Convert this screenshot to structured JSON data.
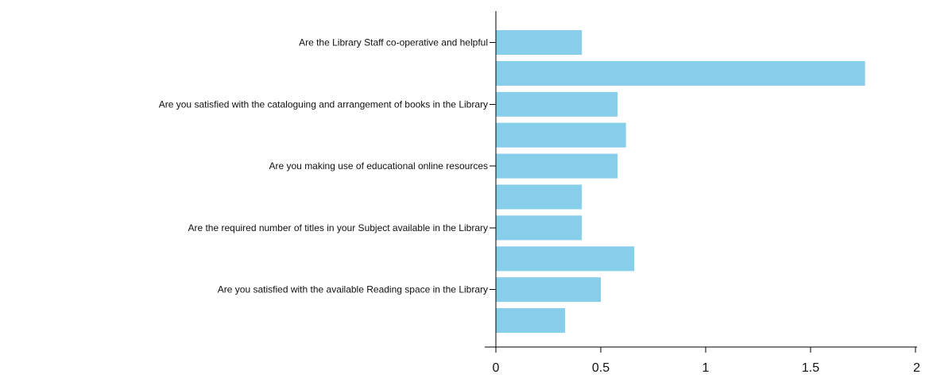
{
  "chart_data": {
    "type": "bar",
    "orientation": "horizontal",
    "categories": [
      "Are the Library Staff co-operative and helpful",
      "",
      "Are you satisfied with the cataloguing and arrangement of books in the Library",
      "",
      "Are you making use of educational online resources",
      "",
      "Are the required number of titles in your Subject available in the Library",
      "",
      "Are you satisfied with the available Reading space in the Library",
      ""
    ],
    "values": [
      0.41,
      1.76,
      0.58,
      0.62,
      0.58,
      0.41,
      0.41,
      0.66,
      0.5,
      0.33
    ],
    "xlim": [
      0,
      2
    ],
    "x_ticks": [
      "0",
      "0.5",
      "1",
      "1.5",
      "2"
    ],
    "grid": false,
    "bar_color": "#87ceeb",
    "axis_color": "#000000",
    "text_color": "#111111"
  }
}
